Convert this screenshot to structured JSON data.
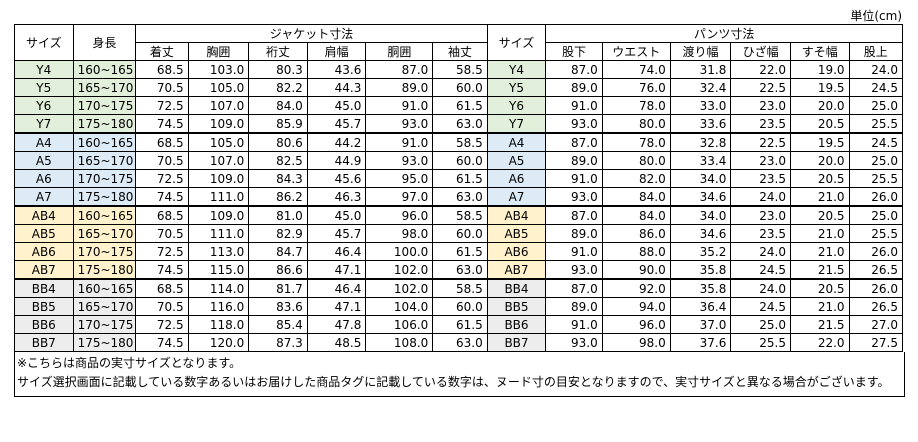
{
  "unit_label": "単位(cm)",
  "headers": {
    "size": "サイズ",
    "height": "身長",
    "jacket_group": "ジャケット寸法",
    "pants_group": "パンツ寸法",
    "jacket_cols": [
      "着丈",
      "胸囲",
      "裄丈",
      "肩幅",
      "胴囲",
      "袖丈"
    ],
    "pants_cols": [
      "股下",
      "ウエスト",
      "渡り幅",
      "ひざ幅",
      "すそ幅",
      "股上"
    ]
  },
  "group_colors": {
    "y": "#e2efda",
    "a": "#ddebf7",
    "ab": "#fff2cc",
    "bb": "#ededed"
  },
  "rows": [
    {
      "group": "y",
      "size": "Y4",
      "height": "160~165",
      "jacket": [
        "68.5",
        "103.0",
        "80.3",
        "43.6",
        "87.0",
        "58.5"
      ],
      "pants": [
        "87.0",
        "74.0",
        "31.8",
        "22.0",
        "19.0",
        "24.0"
      ]
    },
    {
      "group": "y",
      "size": "Y5",
      "height": "165~170",
      "jacket": [
        "70.5",
        "105.0",
        "82.2",
        "44.3",
        "89.0",
        "60.0"
      ],
      "pants": [
        "89.0",
        "76.0",
        "32.4",
        "22.5",
        "19.5",
        "24.5"
      ]
    },
    {
      "group": "y",
      "size": "Y6",
      "height": "170~175",
      "jacket": [
        "72.5",
        "107.0",
        "84.0",
        "45.0",
        "91.0",
        "61.5"
      ],
      "pants": [
        "91.0",
        "78.0",
        "33.0",
        "23.0",
        "20.0",
        "25.0"
      ]
    },
    {
      "group": "y",
      "size": "Y7",
      "height": "175~180",
      "jacket": [
        "74.5",
        "109.0",
        "85.9",
        "45.7",
        "93.0",
        "63.0"
      ],
      "pants": [
        "93.0",
        "80.0",
        "33.6",
        "23.5",
        "20.5",
        "25.5"
      ]
    },
    {
      "group": "a",
      "size": "A4",
      "height": "160~165",
      "jacket": [
        "68.5",
        "105.0",
        "80.6",
        "44.2",
        "91.0",
        "58.5"
      ],
      "pants": [
        "87.0",
        "78.0",
        "32.8",
        "22.5",
        "19.5",
        "24.5"
      ]
    },
    {
      "group": "a",
      "size": "A5",
      "height": "165~170",
      "jacket": [
        "70.5",
        "107.0",
        "82.5",
        "44.9",
        "93.0",
        "60.0"
      ],
      "pants": [
        "89.0",
        "80.0",
        "33.4",
        "23.0",
        "20.0",
        "25.0"
      ]
    },
    {
      "group": "a",
      "size": "A6",
      "height": "170~175",
      "jacket": [
        "72.5",
        "109.0",
        "84.3",
        "45.6",
        "95.0",
        "61.5"
      ],
      "pants": [
        "91.0",
        "82.0",
        "34.0",
        "23.5",
        "20.5",
        "25.5"
      ]
    },
    {
      "group": "a",
      "size": "A7",
      "height": "175~180",
      "jacket": [
        "74.5",
        "111.0",
        "86.2",
        "46.3",
        "97.0",
        "63.0"
      ],
      "pants": [
        "93.0",
        "84.0",
        "34.6",
        "24.0",
        "21.0",
        "26.0"
      ]
    },
    {
      "group": "ab",
      "size": "AB4",
      "height": "160~165",
      "jacket": [
        "68.5",
        "109.0",
        "81.0",
        "45.0",
        "96.0",
        "58.5"
      ],
      "pants": [
        "87.0",
        "84.0",
        "34.0",
        "23.0",
        "20.5",
        "25.0"
      ]
    },
    {
      "group": "ab",
      "size": "AB5",
      "height": "165~170",
      "jacket": [
        "70.5",
        "111.0",
        "82.9",
        "45.7",
        "98.0",
        "60.0"
      ],
      "pants": [
        "89.0",
        "86.0",
        "34.6",
        "23.5",
        "21.0",
        "25.5"
      ]
    },
    {
      "group": "ab",
      "size": "AB6",
      "height": "170~175",
      "jacket": [
        "72.5",
        "113.0",
        "84.7",
        "46.4",
        "100.0",
        "61.5"
      ],
      "pants": [
        "91.0",
        "88.0",
        "35.2",
        "24.0",
        "21.0",
        "26.0"
      ]
    },
    {
      "group": "ab",
      "size": "AB7",
      "height": "175~180",
      "jacket": [
        "74.5",
        "115.0",
        "86.6",
        "47.1",
        "102.0",
        "63.0"
      ],
      "pants": [
        "93.0",
        "90.0",
        "35.8",
        "24.5",
        "21.5",
        "26.5"
      ]
    },
    {
      "group": "bb",
      "size": "BB4",
      "height": "160~165",
      "jacket": [
        "68.5",
        "114.0",
        "81.7",
        "46.4",
        "102.0",
        "58.5"
      ],
      "pants": [
        "87.0",
        "92.0",
        "35.8",
        "24.0",
        "20.5",
        "26.0"
      ]
    },
    {
      "group": "bb",
      "size": "BB5",
      "height": "165~170",
      "jacket": [
        "70.5",
        "116.0",
        "83.6",
        "47.1",
        "104.0",
        "60.0"
      ],
      "pants": [
        "89.0",
        "94.0",
        "36.4",
        "24.5",
        "21.0",
        "26.5"
      ]
    },
    {
      "group": "bb",
      "size": "BB6",
      "height": "170~175",
      "jacket": [
        "72.5",
        "118.0",
        "85.4",
        "47.8",
        "106.0",
        "61.5"
      ],
      "pants": [
        "91.0",
        "96.0",
        "37.0",
        "25.0",
        "21.5",
        "27.0"
      ]
    },
    {
      "group": "bb",
      "size": "BB7",
      "height": "175~180",
      "jacket": [
        "74.5",
        "120.0",
        "87.3",
        "48.5",
        "108.0",
        "63.0"
      ],
      "pants": [
        "93.0",
        "98.0",
        "37.6",
        "25.5",
        "22.0",
        "27.5"
      ]
    }
  ],
  "notes": [
    "※こちらは商品の実寸サイズとなります。",
    "サイズ選択画面に記載している数字あるいはお届けした商品タグに記載している数字は、ヌード寸の目安となりますので、実寸サイズと異なる場合がございます。"
  ]
}
